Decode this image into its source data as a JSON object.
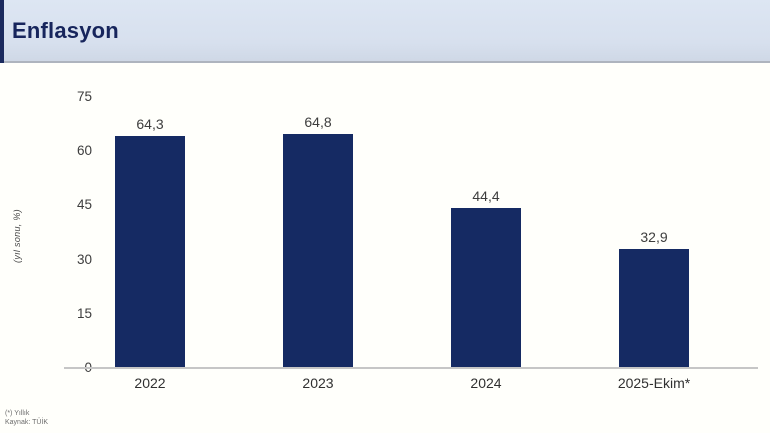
{
  "header": {
    "title": "Enflasyon"
  },
  "chart_data": {
    "type": "bar",
    "title": "Enflasyon",
    "categories": [
      "2022",
      "2023",
      "2024",
      "2025-Ekim*"
    ],
    "values": [
      64.3,
      64.8,
      44.4,
      32.9
    ],
    "value_labels": [
      "64,3",
      "64,8",
      "44,4",
      "32,9"
    ],
    "xlabel": "",
    "ylabel": "(yıl sonu, %)",
    "ylim": [
      0,
      75
    ],
    "yticks": [
      0,
      15,
      30,
      45,
      60,
      75
    ],
    "ytick_labels_top_to_bottom": [
      "75",
      "60",
      "45",
      "30",
      "15",
      "0"
    ],
    "grid": false,
    "legend": "none",
    "bar_color": "#152a63"
  },
  "footnote": {
    "line1": "(*) Yıllık",
    "line2": "Kaynak: TÜİK"
  },
  "colors": {
    "header_background": "#d9e2f0",
    "accent_navy": "#1b2a5e",
    "title_text": "#17255c",
    "bar": "#152a63",
    "axis_line": "#c6c6c6",
    "tick_text": "#3d3d3d",
    "footnote_text": "#6d6d6d"
  }
}
